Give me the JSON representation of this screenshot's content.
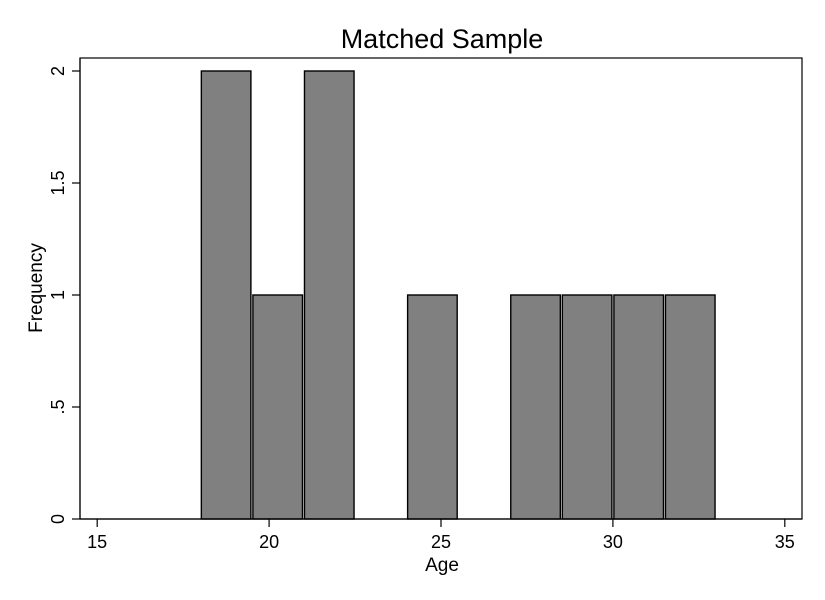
{
  "chart_data": {
    "type": "bar",
    "title": "Matched Sample",
    "xlabel": "Age",
    "ylabel": "Frequency",
    "xlim": [
      14.5,
      35.5
    ],
    "ylim": [
      0,
      2.05
    ],
    "xticks": [
      15,
      20,
      25,
      30,
      35
    ],
    "xtick_labels": [
      "15",
      "20",
      "25",
      "30",
      "35"
    ],
    "yticks": [
      0,
      0.5,
      1,
      1.5,
      2
    ],
    "ytick_labels": [
      "0",
      ".5",
      "1",
      "1.5",
      "2"
    ],
    "bins": [
      {
        "start": 18.0,
        "end": 19.5,
        "value": 2
      },
      {
        "start": 19.5,
        "end": 21.0,
        "value": 1
      },
      {
        "start": 21.0,
        "end": 22.5,
        "value": 2
      },
      {
        "start": 24.0,
        "end": 25.5,
        "value": 1
      },
      {
        "start": 27.0,
        "end": 28.5,
        "value": 1
      },
      {
        "start": 28.5,
        "end": 30.0,
        "value": 1
      },
      {
        "start": 30.0,
        "end": 31.5,
        "value": 1
      },
      {
        "start": 31.5,
        "end": 33.0,
        "value": 1
      }
    ],
    "bar_color": "#808080",
    "grid": false,
    "legend": "none"
  }
}
